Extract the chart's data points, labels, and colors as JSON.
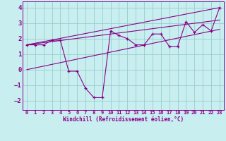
{
  "bg_color": "#c8eef0",
  "line_color": "#880088",
  "grid_color": "#99cccc",
  "xlabel": "Windchill (Refroidissement éolien,°C)",
  "ylim": [
    -2.6,
    4.4
  ],
  "xlim": [
    -0.5,
    23.5
  ],
  "yticks": [
    -2,
    -1,
    0,
    1,
    2,
    3,
    4
  ],
  "xticks": [
    0,
    1,
    2,
    3,
    4,
    5,
    6,
    7,
    8,
    9,
    10,
    11,
    12,
    13,
    14,
    15,
    16,
    17,
    18,
    19,
    20,
    21,
    22,
    23
  ],
  "series1_x": [
    0,
    1,
    2,
    3,
    4,
    5,
    6,
    7,
    8,
    9,
    10,
    11,
    12,
    13,
    14,
    15,
    16,
    17,
    18,
    19,
    20,
    21,
    22,
    23
  ],
  "series1_y": [
    1.6,
    1.6,
    1.6,
    1.9,
    1.9,
    -0.1,
    -0.1,
    -1.2,
    -1.8,
    -1.8,
    2.5,
    2.2,
    2.0,
    1.6,
    1.6,
    2.3,
    2.3,
    1.5,
    1.5,
    3.1,
    2.4,
    2.9,
    2.5,
    4.0
  ],
  "trend1_x": [
    0,
    23
  ],
  "trend1_y": [
    1.6,
    4.0
  ],
  "trend2_x": [
    0,
    23
  ],
  "trend2_y": [
    1.6,
    3.2
  ],
  "trend3_x": [
    0,
    23
  ],
  "trend3_y": [
    0.0,
    2.6
  ]
}
